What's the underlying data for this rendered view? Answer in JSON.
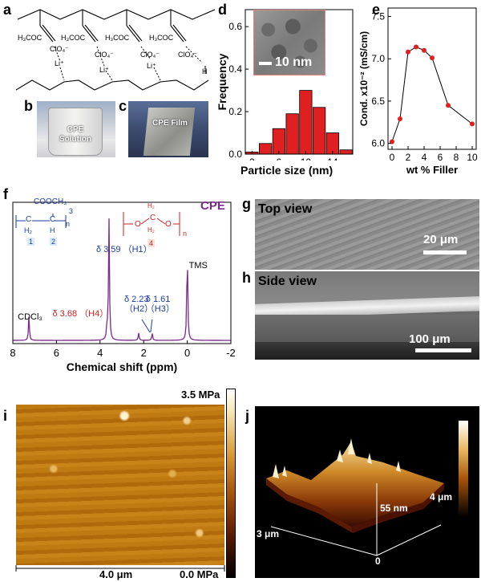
{
  "panels": {
    "a": {
      "letter": "a",
      "ester_labels": [
        "H₃COC",
        "H₃COC",
        "H₃COC",
        "H₃COC"
      ],
      "anions": [
        "ClO₄⁻",
        "ClO₄⁻",
        "ClO₄⁻",
        "ClO₄⁻"
      ],
      "cations": [
        "Li⁺",
        "Li⁺",
        "Li⁺"
      ],
      "o_label": "O",
      "h_label": "H"
    },
    "b": {
      "letter": "b",
      "label_line1": "CPE",
      "label_line2": "Solution"
    },
    "c": {
      "letter": "c",
      "label": "CPE Film"
    },
    "d": {
      "letter": "d",
      "scale_label": "10 nm"
    },
    "e": {
      "letter": "e"
    },
    "f": {
      "letter": "f",
      "series_label": "CPE",
      "monomer1": {
        "top": "COOCH₃",
        "ch2": "C",
        "ch": "C",
        "h2": "H₂",
        "h": "H",
        "n": "n",
        "num3": "3",
        "num1": "1",
        "num2": "2"
      },
      "monomer2": {
        "h2a": "H₂",
        "h2b": "H₂",
        "c": "C",
        "o": "O",
        "n": "n",
        "num4": "4"
      }
    },
    "g": {
      "letter": "g",
      "title": "Top view",
      "scale_label": "20 μm"
    },
    "h": {
      "letter": "h",
      "title": "Side view",
      "scale_label": "100 μm"
    },
    "i": {
      "letter": "i",
      "colorbar_max": "3.5 MPa",
      "colorbar_min": "0.0 MPa",
      "scale_label": "4.0 μm"
    },
    "j": {
      "letter": "j",
      "z_label": "55 nm",
      "y_label": "4 μm",
      "x_label": "3 μm",
      "zero_label": "0"
    }
  },
  "chart_data": [
    {
      "type": "bar",
      "panel": "d",
      "xlabel": "Particle size (nm)",
      "ylabel": "Frequency",
      "x": [
        2,
        4,
        6,
        8,
        10,
        12,
        14,
        16
      ],
      "values": [
        0.01,
        0.05,
        0.12,
        0.19,
        0.3,
        0.22,
        0.1,
        0.02
      ],
      "xticks": [
        2,
        6,
        10,
        14
      ],
      "yticks": [
        0.0,
        0.2,
        0.4,
        0.6
      ],
      "xlim": [
        1,
        17
      ],
      "ylim": [
        0,
        0.68
      ],
      "bar_color": "#e02020"
    },
    {
      "type": "line",
      "panel": "e",
      "xlabel": "wt % Filler",
      "ylabel": "Cond. x10⁻² (mS/cm)",
      "x": [
        0,
        1,
        2,
        3,
        4,
        5,
        7,
        10
      ],
      "y": [
        6.02,
        6.29,
        7.08,
        7.14,
        7.1,
        7.01,
        6.45,
        6.23
      ],
      "xticks": [
        0,
        2,
        4,
        6,
        8,
        10
      ],
      "yticks": [
        6.0,
        6.5,
        7.0,
        7.5
      ],
      "xlim": [
        -0.5,
        10.5
      ],
      "ylim": [
        5.93,
        7.6
      ],
      "marker_color": "#e02020"
    },
    {
      "type": "line",
      "panel": "f",
      "xlabel": "Chemical shift (ppm)",
      "reversed_x": true,
      "xticks": [
        8,
        6,
        4,
        2,
        0,
        -2
      ],
      "xlim": [
        8,
        -2
      ],
      "line_color": "#7a2a8a",
      "peaks": [
        {
          "x": 7.26,
          "h": 0.2,
          "label": "CDCl₃",
          "color": "#000000"
        },
        {
          "x": 3.68,
          "h": 0.12,
          "label": "δ 3.68 （H4）",
          "color": "#d02020"
        },
        {
          "x": 3.59,
          "h": 1.0,
          "label": "δ 3.59 （H1）",
          "color": "#1a3aa0"
        },
        {
          "x": 2.23,
          "h": 0.06,
          "label": "δ 2.23\n（H2）",
          "color": "#1a3aa0"
        },
        {
          "x": 1.61,
          "h": 0.06,
          "label": "δ 1.61\n（H3）",
          "color": "#1a3aa0"
        },
        {
          "x": 0.0,
          "h": 0.78,
          "label": "TMS",
          "color": "#000000"
        }
      ]
    }
  ]
}
